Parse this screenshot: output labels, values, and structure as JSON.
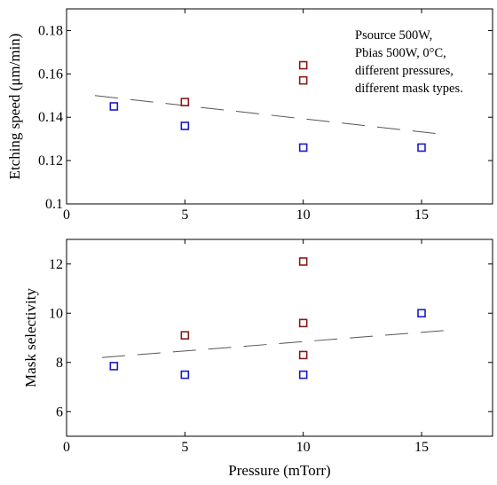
{
  "chart_data": [
    {
      "type": "scatter",
      "ylabel": "Etching speed (μm/min)",
      "xlabel": "",
      "xlim": [
        0,
        18
      ],
      "ylim": [
        0.1,
        0.19
      ],
      "xticks": [
        "0",
        "5",
        "10",
        "15"
      ],
      "yticks": [
        "0.1",
        "0.12",
        "0.14",
        "0.16",
        "0.18"
      ],
      "annotation": [
        "Psource 500W,",
        "Pbias 500W, 0°C,",
        "different pressures,",
        "different mask types."
      ],
      "series": [
        {
          "color": "#1a1acc",
          "x": [
            2,
            5,
            10,
            15
          ],
          "y": [
            0.145,
            0.136,
            0.126,
            0.126
          ]
        },
        {
          "color": "#8b1a1a",
          "x": [
            5,
            10,
            10
          ],
          "y": [
            0.147,
            0.164,
            0.157
          ]
        }
      ],
      "trend": {
        "style": "dashed",
        "color": "#555555",
        "x": [
          1.2,
          16
        ],
        "y": [
          0.15,
          0.132
        ]
      }
    },
    {
      "type": "scatter",
      "ylabel": "Mask selectivity",
      "xlabel": "Pressure (mTorr)",
      "xlim": [
        0,
        18
      ],
      "ylim": [
        5,
        13
      ],
      "xticks": [
        "0",
        "5",
        "10",
        "15"
      ],
      "yticks": [
        "6",
        "8",
        "10",
        "12"
      ],
      "series": [
        {
          "color": "#1a1acc",
          "x": [
            2,
            5,
            10,
            15
          ],
          "y": [
            7.85,
            7.5,
            7.5,
            10.0
          ]
        },
        {
          "color": "#8b1a1a",
          "x": [
            5,
            10,
            10,
            10
          ],
          "y": [
            9.1,
            12.1,
            9.6,
            8.3
          ]
        }
      ],
      "trend": {
        "style": "dashed",
        "color": "#555555",
        "x": [
          1.5,
          16
        ],
        "y": [
          8.2,
          9.3
        ]
      }
    }
  ]
}
